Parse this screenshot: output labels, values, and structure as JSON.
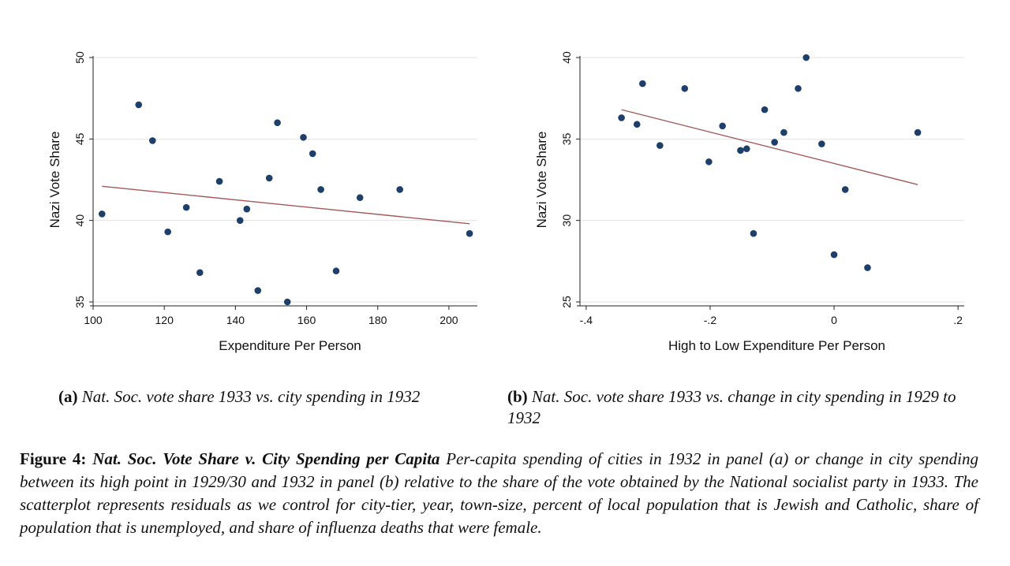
{
  "chart_data": [
    {
      "type": "scatter",
      "xlabel": "Expenditure Per Person",
      "ylabel": "Nazi Vote Share",
      "xlim": [
        100,
        208
      ],
      "ylim": [
        35,
        50
      ],
      "x_ticks": [
        100,
        120,
        140,
        160,
        180,
        200
      ],
      "x_tick_labels": [
        "100",
        "120",
        "140",
        "160",
        "180",
        "200"
      ],
      "y_ticks": [
        35,
        40,
        45,
        50
      ],
      "y_tick_labels": [
        "35",
        "40",
        "45",
        "50"
      ],
      "grid": true,
      "marker_color": "#1f3f6b",
      "fit_color": "#a05a5a",
      "points": [
        {
          "x": 102.5,
          "y": 40.4
        },
        {
          "x": 112.8,
          "y": 47.1
        },
        {
          "x": 116.7,
          "y": 44.9
        },
        {
          "x": 121.0,
          "y": 39.3
        },
        {
          "x": 126.2,
          "y": 40.8
        },
        {
          "x": 130.0,
          "y": 36.8
        },
        {
          "x": 135.5,
          "y": 42.4
        },
        {
          "x": 141.3,
          "y": 40.0
        },
        {
          "x": 143.2,
          "y": 40.7
        },
        {
          "x": 146.3,
          "y": 35.7
        },
        {
          "x": 149.5,
          "y": 42.6
        },
        {
          "x": 151.8,
          "y": 46.0
        },
        {
          "x": 154.6,
          "y": 35.0
        },
        {
          "x": 159.1,
          "y": 45.1
        },
        {
          "x": 161.7,
          "y": 44.1
        },
        {
          "x": 164.0,
          "y": 41.9
        },
        {
          "x": 168.3,
          "y": 36.9
        },
        {
          "x": 175.0,
          "y": 41.4
        },
        {
          "x": 186.2,
          "y": 41.9
        },
        {
          "x": 205.8,
          "y": 39.2
        }
      ],
      "fit_line": {
        "x": [
          102.5,
          205.8
        ],
        "y": [
          42.1,
          39.8
        ]
      }
    },
    {
      "type": "scatter",
      "xlabel": "High to Low Expenditure Per Person",
      "ylabel": "Nazi Vote Share",
      "xlim": [
        -0.41,
        0.21
      ],
      "ylim": [
        25,
        40
      ],
      "x_ticks": [
        -0.4,
        -0.2,
        0,
        0.2
      ],
      "x_tick_labels": [
        "-.4",
        "-.2",
        "0",
        ".2"
      ],
      "y_ticks": [
        25,
        30,
        35,
        40
      ],
      "y_tick_labels": [
        "25",
        "30",
        "35",
        "40"
      ],
      "grid": true,
      "marker_color": "#1f3f6b",
      "fit_color": "#a05a5a",
      "points": [
        {
          "x": -0.343,
          "y": 36.3
        },
        {
          "x": -0.318,
          "y": 35.9
        },
        {
          "x": -0.309,
          "y": 38.4
        },
        {
          "x": -0.281,
          "y": 34.6
        },
        {
          "x": -0.241,
          "y": 38.1
        },
        {
          "x": -0.202,
          "y": 33.6
        },
        {
          "x": -0.18,
          "y": 35.8
        },
        {
          "x": -0.151,
          "y": 34.3
        },
        {
          "x": -0.141,
          "y": 34.4
        },
        {
          "x": -0.13,
          "y": 29.2
        },
        {
          "x": -0.112,
          "y": 36.8
        },
        {
          "x": -0.096,
          "y": 34.8
        },
        {
          "x": -0.081,
          "y": 35.4
        },
        {
          "x": -0.058,
          "y": 38.1
        },
        {
          "x": -0.045,
          "y": 40.0
        },
        {
          "x": -0.02,
          "y": 34.7
        },
        {
          "x": 0.0,
          "y": 27.9
        },
        {
          "x": 0.018,
          "y": 31.9
        },
        {
          "x": 0.054,
          "y": 27.1
        },
        {
          "x": 0.135,
          "y": 35.4
        }
      ],
      "fit_line": {
        "x": [
          -0.343,
          0.135
        ],
        "y": [
          36.8,
          32.2
        ]
      }
    }
  ],
  "subcaptions": {
    "a": {
      "label": "(a)",
      "text": "Nat. Soc. vote share 1933 vs. city spending in 1932"
    },
    "b": {
      "label": "(b)",
      "text": "Nat. Soc. vote share 1933 vs. change in city spending in 1929 to 1932"
    }
  },
  "figure_caption": {
    "label": "Figure 4:",
    "title": "Nat. Soc. Vote Share v. City Spending per Capita",
    "text": "Per-capita spending of cities in 1932 in panel (a) or change in city spending between its high point in 1929/30 and 1932 in panel (b) relative to the share of the vote obtained by the National socialist party in 1933. The scatterplot represents residuals as we control for city-tier, year, town-size, percent of local population that is Jewish and Catholic, share of population that is unemployed, and share of influenza deaths that were female."
  }
}
